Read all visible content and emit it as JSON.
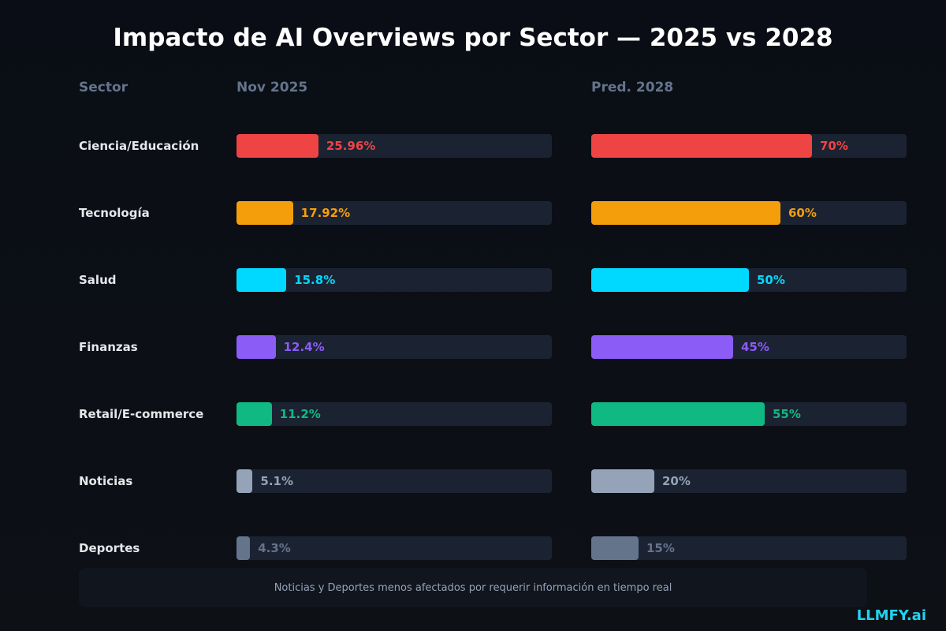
{
  "chart_data": {
    "type": "bar",
    "title": "Impacto de AI Overviews por Sector — 2025 vs 2028",
    "column_headers": {
      "sector": "Sector",
      "nov2025": "Nov 2025",
      "pred2028": "Pred. 2028"
    },
    "xlim": [
      0,
      100
    ],
    "grid": false,
    "categories": [
      "Ciencia/Educación",
      "Tecnología",
      "Salud",
      "Finanzas",
      "Retail/E-commerce",
      "Noticias",
      "Deportes"
    ],
    "series": [
      {
        "name": "Nov 2025",
        "values": [
          25.96,
          17.92,
          15.8,
          12.4,
          11.2,
          5.1,
          4.3
        ]
      },
      {
        "name": "Pred. 2028",
        "values": [
          70,
          60,
          50,
          45,
          55,
          20,
          15
        ]
      }
    ],
    "colors": [
      "#ef4444",
      "#f59e0b",
      "#00d9ff",
      "#8b5cf6",
      "#10b981",
      "#94a3b8",
      "#64748b"
    ],
    "annotation": "Noticias y Deportes menos afectados por requerir información en tiempo real"
  },
  "brand": "LLMFY.ai"
}
